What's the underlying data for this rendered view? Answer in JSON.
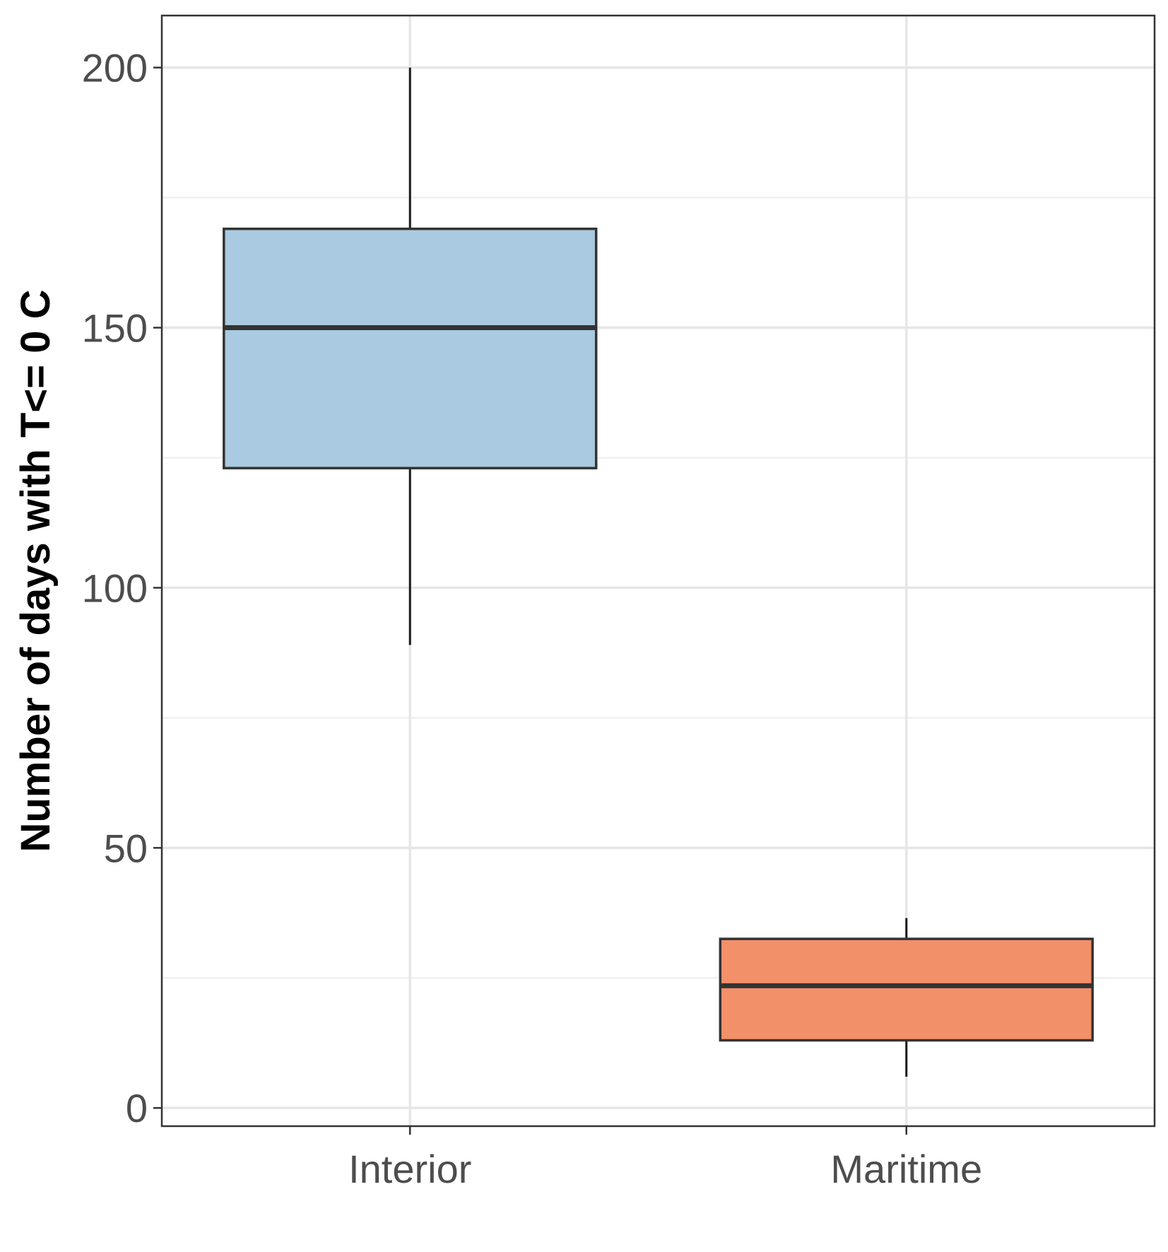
{
  "chart_data": {
    "type": "boxplot",
    "title": "",
    "xlabel": "",
    "ylabel": "Number of days with T<= 0 C",
    "ylim": [
      -3.5,
      210
    ],
    "y_ticks": [
      0,
      50,
      100,
      150,
      200
    ],
    "y_minor_ticks": [
      25,
      75,
      125,
      175
    ],
    "grid": true,
    "legend": "none",
    "categories": [
      "Interior",
      "Maritime"
    ],
    "boxes": [
      {
        "category": "Interior",
        "whisker_low": 89,
        "q1": 123,
        "median": 150,
        "q3": 169,
        "whisker_high": 200,
        "color": "#a6c8df"
      },
      {
        "category": "Maritime",
        "whisker_low": 6,
        "q1": 13,
        "median": 23.5,
        "q3": 32.5,
        "whisker_high": 36.5,
        "color": "#f28c65"
      }
    ]
  }
}
